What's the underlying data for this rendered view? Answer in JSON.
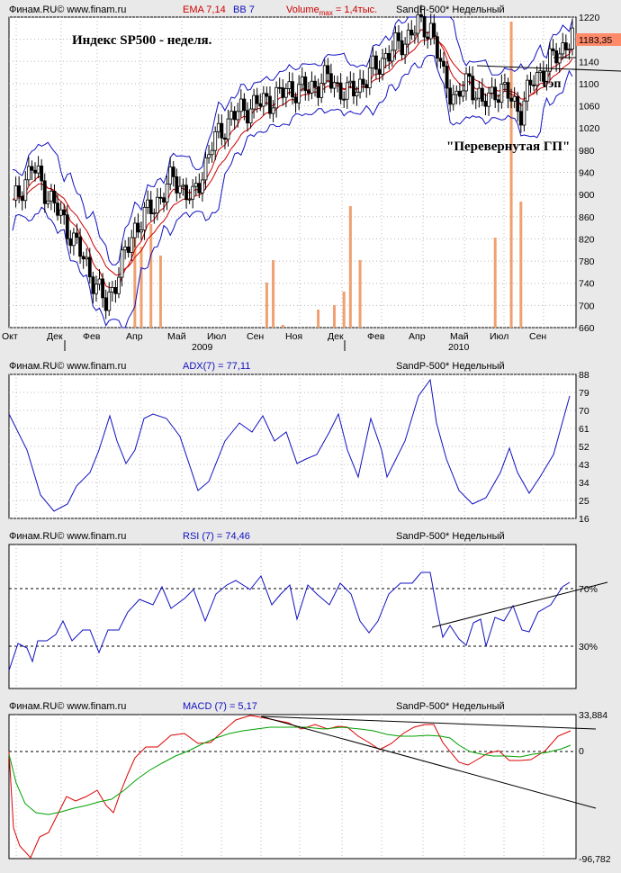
{
  "chart_data": [
    {
      "type": "candlestick",
      "header": {
        "left": "Финам.RU© www.finam.ru",
        "ema": "EMA 7,14",
        "bb": "BB 7",
        "volume_prefix": "Volume",
        "volume_sub": "max",
        "volume_suffix": " = 1,4тыс.",
        "right": "SandP-500* Недельный"
      },
      "annotations": {
        "title": "Индекс SP500 - неделя.",
        "gap": "гэп",
        "pattern": "\"Перевернутая ГП\""
      },
      "price_label": "1183,35",
      "ylim": [
        660,
        1220
      ],
      "y_ticks": [
        "1220",
        "1180",
        "1140",
        "1100",
        "1060",
        "1020",
        "980",
        "940",
        "900",
        "860",
        "820",
        "780",
        "740",
        "700",
        "660"
      ],
      "x_ticks": [
        "Окт",
        "Дек",
        "Фев",
        "Апр",
        "Май",
        "Июл",
        "Сен",
        "Ноя",
        "Дек",
        "Фев",
        "Апр",
        "Май",
        "Июл",
        "Сен"
      ],
      "year_labels": [
        "2009",
        "2010"
      ],
      "colors": {
        "bull": "#ffffff",
        "bear": "#000000",
        "ema_fast": "#cc0000",
        "ema_slow": "#cc0000",
        "bb": "#1010c0",
        "volume": "#f0a070"
      }
    },
    {
      "type": "line",
      "header": {
        "left": "Финам.RU© www.finam.ru",
        "indicator": "ADX(7) = 77,11",
        "right": "SandP-500* Недельный"
      },
      "ylim": [
        16,
        88
      ],
      "y_ticks": [
        "88",
        "79",
        "70",
        "61",
        "52",
        "43",
        "34",
        "25",
        "16"
      ]
    },
    {
      "type": "line",
      "header": {
        "left": "Финам.RU© www.finam.ru",
        "indicator": "RSI (7) = 74,46",
        "right": "SandP-500* Недельный"
      },
      "levels": [
        "70%",
        "30%"
      ]
    },
    {
      "type": "line",
      "header": {
        "left": "Финам.RU© www.finam.ru",
        "indicator": "MACD (7) = 5,17",
        "right": "SandP-500* Недельный"
      },
      "y_ticks": [
        "33,884",
        "0",
        "-96,782"
      ],
      "series": [
        {
          "color": "#dd0000"
        },
        {
          "color": "#00a000"
        }
      ]
    }
  ]
}
